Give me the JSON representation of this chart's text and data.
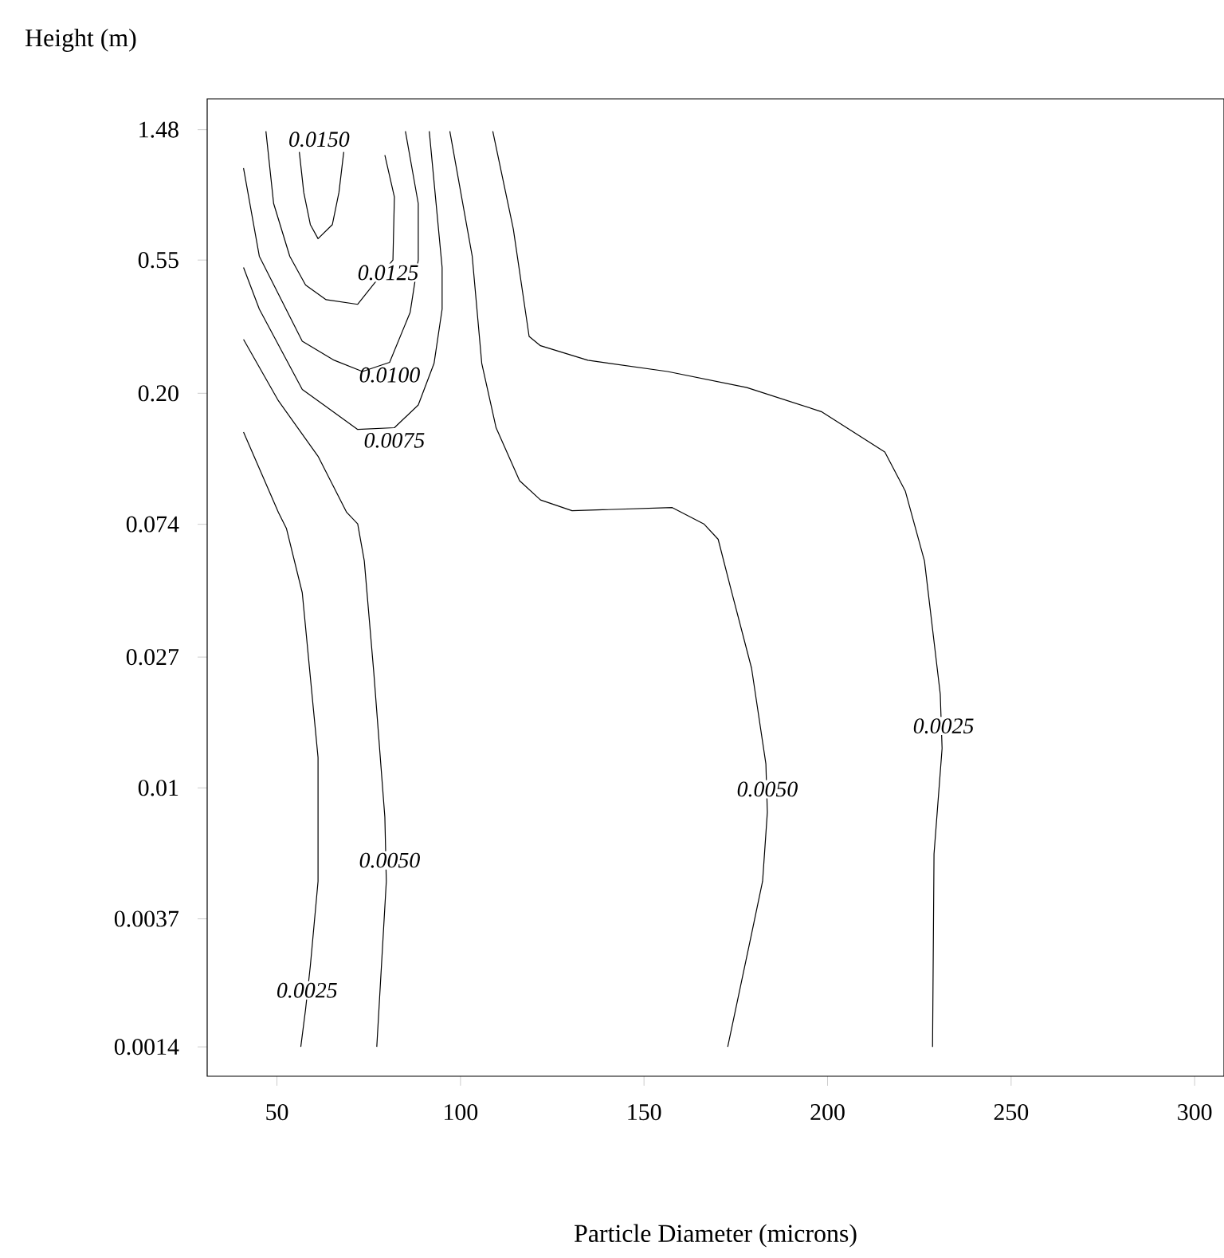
{
  "chart_data": {
    "type": "line",
    "xlabel": "Particle Diameter  (microns)",
    "ylabel": "Height (m)",
    "log": "y",
    "xlim": [
      31,
      308
    ],
    "ylim": [
      0.00112,
      1.87
    ],
    "xticks": [
      50,
      100,
      150,
      200,
      250,
      300
    ],
    "yticks": [
      1.48,
      0.55,
      {
        "value": 0.2,
        "label": "0.20"
      },
      0.074,
      0.027,
      0.01,
      0.0037,
      0.0014
    ],
    "series": [
      {
        "color": "#000000",
        "x": [
          40.9,
          50.4,
          52.6,
          56.9,
          61.2,
          61.2,
          59.1,
          57.8,
          56.5
        ],
        "values": [
          0.149,
          0.081,
          0.0716,
          0.044,
          0.0126,
          0.00492,
          0.00259,
          0.00186,
          0.0014
        ]
      },
      {
        "color": "#000000",
        "x": [
          40.9,
          50.4,
          61.2,
          69.0,
          72.0,
          73.8,
          76.4,
          79.4,
          79.8,
          77.2
        ],
        "values": [
          0.301,
          0.189,
          0.124,
          0.081,
          0.0742,
          0.056,
          0.0239,
          0.008,
          0.00492,
          0.0014
        ]
      },
      {
        "color": "#000000",
        "x": [
          97.1,
          103.2,
          105.8,
          109.7,
          116.1,
          121.8,
          130.4,
          157.7,
          166.3,
          170.2,
          173.6,
          179.3,
          183.2,
          183.6,
          182.3,
          179.3,
          172.8
        ],
        "values": [
          1.462,
          0.566,
          0.251,
          0.154,
          0.103,
          0.089,
          0.082,
          0.084,
          0.0742,
          0.066,
          0.0456,
          0.0248,
          0.012,
          0.00831,
          0.00492,
          0.0033,
          0.0014
        ]
      },
      {
        "color": "#000000",
        "x": [
          108.8,
          114.4,
          118.7,
          121.8,
          134.7,
          156.4,
          178.0,
          198.3,
          215.6,
          221.2,
          226.4,
          230.7,
          231.2,
          229.0,
          228.6
        ],
        "values": [
          1.462,
          0.696,
          0.308,
          0.287,
          0.257,
          0.236,
          0.209,
          0.174,
          0.128,
          0.095,
          0.056,
          0.0204,
          0.0135,
          0.00605,
          0.0014
        ]
      },
      {
        "color": "#000000",
        "x": [
          40.9,
          45.2,
          56.9,
          72.0,
          82.0,
          88.5,
          92.8,
          95.0,
          95.0,
          91.5
        ],
        "values": [
          0.52,
          0.379,
          0.206,
          0.152,
          0.154,
          0.183,
          0.251,
          0.379,
          0.52,
          1.462
        ]
      },
      {
        "color": "#000000",
        "x": [
          40.9,
          45.2,
          56.9,
          65.6,
          73.3,
          80.7,
          86.3,
          88.5,
          88.5,
          85.0
        ],
        "values": [
          1.105,
          0.566,
          0.297,
          0.257,
          0.236,
          0.253,
          0.37,
          0.55,
          0.845,
          1.462
        ]
      },
      {
        "color": "#000000",
        "x": [
          47.0,
          49.1,
          53.5,
          57.8,
          63.4,
          72.0,
          81.6,
          82.0,
          79.4
        ],
        "values": [
          1.462,
          0.845,
          0.566,
          0.455,
          0.407,
          0.393,
          0.55,
          0.888,
          1.22
        ]
      },
      {
        "color": "#000000",
        "x": [
          56.1,
          57.3,
          59.1,
          61.2,
          65.1,
          66.9,
          68.2
        ],
        "values": [
          1.249,
          0.92,
          0.72,
          0.647,
          0.72,
          0.92,
          1.249
        ]
      }
    ],
    "annotations": [
      {
        "text": "0.0025",
        "x": 58.2,
        "y": 0.00215
      },
      {
        "text": "0.0050",
        "x": 80.7,
        "y": 0.00577
      },
      {
        "text": "0.0050",
        "x": 183.6,
        "y": 0.0099
      },
      {
        "text": "0.0025",
        "x": 231.6,
        "y": 0.016
      },
      {
        "text": "0.0075",
        "x": 82.0,
        "y": 0.154
      },
      {
        "text": "0.0100",
        "x": 80.7,
        "y": 0.253
      },
      {
        "text": "0.0125",
        "x": 81.6,
        "y": 0.55
      },
      {
        "text": "0.0150",
        "x": 56.1,
        "y": 1.249
      }
    ]
  }
}
